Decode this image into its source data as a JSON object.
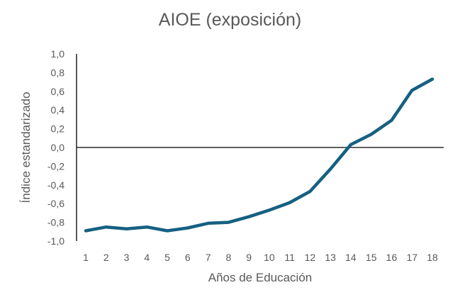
{
  "chart_data": {
    "type": "line",
    "title": "AIOE (exposición)",
    "xlabel": "Años de Educación",
    "ylabel": "Índice estandarizado",
    "x": [
      1,
      2,
      3,
      4,
      5,
      6,
      7,
      8,
      9,
      10,
      11,
      12,
      13,
      14,
      15,
      16,
      17,
      18
    ],
    "series": [
      {
        "values": [
          -0.89,
          -0.85,
          -0.87,
          -0.85,
          -0.89,
          -0.86,
          -0.81,
          -0.8,
          -0.74,
          -0.67,
          -0.59,
          -0.47,
          -0.23,
          0.03,
          0.14,
          0.29,
          0.61,
          0.73
        ],
        "color": "#156082"
      }
    ],
    "ylim": [
      -1.0,
      1.0
    ],
    "yticks": [
      "-1,0",
      "-0,8",
      "-0,6",
      "-0,4",
      "-0,2",
      "0,0",
      "0,2",
      "0,4",
      "0,6",
      "0,8",
      "1,0"
    ],
    "xticks": [
      "1",
      "2",
      "3",
      "4",
      "5",
      "6",
      "7",
      "8",
      "9",
      "10",
      "11",
      "12",
      "13",
      "14",
      "15",
      "16",
      "17",
      "18"
    ],
    "grid": false,
    "legend": "none",
    "zero_line": true
  }
}
